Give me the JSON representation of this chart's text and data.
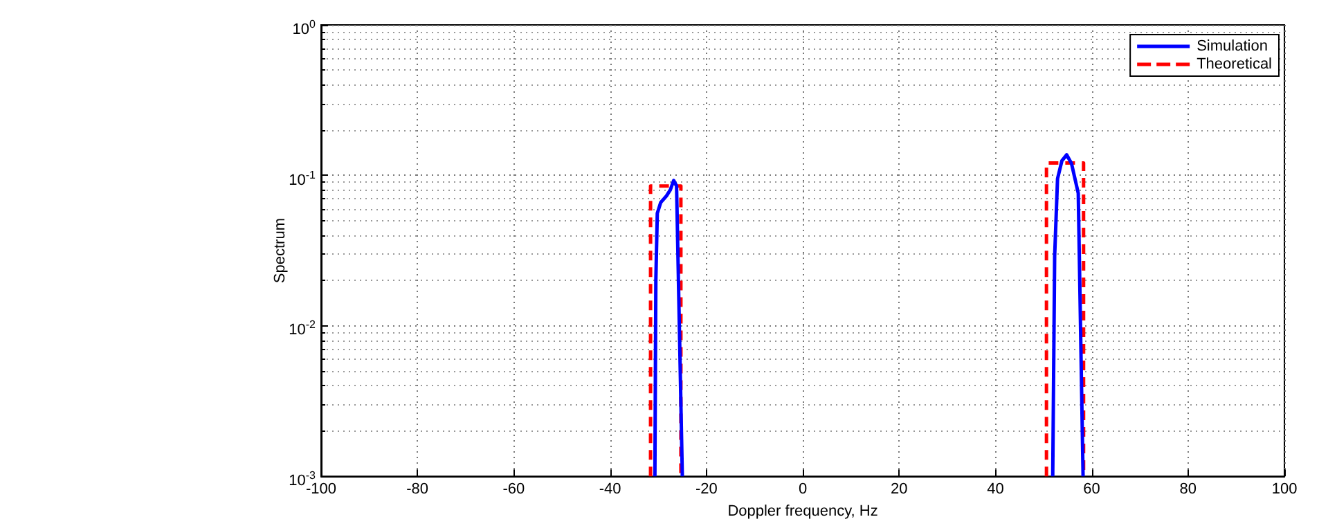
{
  "chart_data": {
    "type": "line",
    "xlabel": "Doppler frequency, Hz",
    "ylabel": "Spectrum",
    "series": [
      {
        "name": "Simulation",
        "color": "#0000ff",
        "line_style": "solid",
        "x": [
          -30.7,
          -30.5,
          -30.2,
          -29.5,
          -28.3,
          -27.5,
          -26.8,
          -26.2,
          -25,
          null,
          51.9,
          52.3,
          52.9,
          53.8,
          54.8,
          55.8,
          57.2,
          58.2
        ],
        "values": [
          0.001,
          0.02,
          0.056,
          0.066,
          0.073,
          0.08,
          0.0925,
          0.085,
          0.001,
          null,
          0.001,
          0.029,
          0.095,
          0.125,
          0.137,
          0.12,
          0.076,
          0.001
        ]
      },
      {
        "name": "Theoretical",
        "color": "#ff0000",
        "line_style": "dashed",
        "x": [
          -31.6,
          -31.6,
          -25.3,
          -25.3,
          null,
          50.6,
          50.6,
          58.3,
          58.3
        ],
        "values": [
          0.001,
          0.085,
          0.085,
          0.001,
          null,
          0.001,
          0.121,
          0.121,
          0.001
        ]
      }
    ],
    "xlim": [
      -100,
      100
    ],
    "xticks": [
      -100,
      -80,
      -60,
      -40,
      -20,
      0,
      20,
      40,
      60,
      80,
      100
    ],
    "ylim": [
      0.001,
      1
    ],
    "yticks": [
      {
        "value": 0.001,
        "label": "10$^{-3}$"
      },
      {
        "value": 0.01,
        "label": "10$^{-2}$"
      },
      {
        "value": 0.1,
        "label": "10$^{-1}$"
      },
      {
        "value": 1,
        "label": "10$^{0}$"
      }
    ],
    "log": "y",
    "grid": true,
    "legend": "top right",
    "marker": "none"
  }
}
